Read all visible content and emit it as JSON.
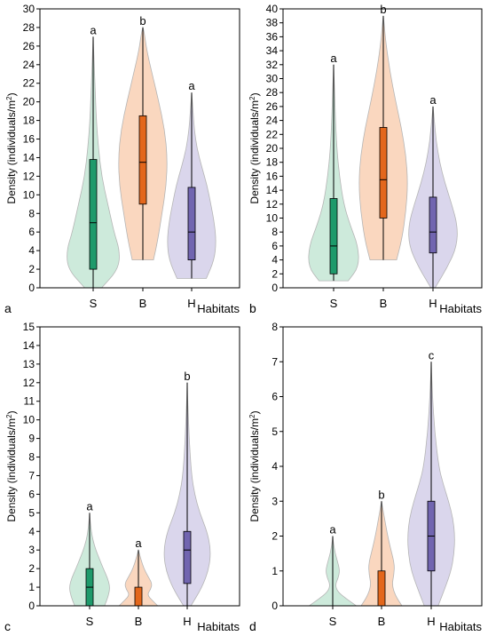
{
  "figure": {
    "x_axis_label": "Habitats",
    "y_axis_label_prefix": "Density (individuals/m",
    "y_axis_label_sup": "2",
    "y_axis_label_suffix": ")"
  },
  "colors": {
    "S": {
      "fill": "#cdeadb",
      "box": "#1e9a6b"
    },
    "B": {
      "fill": "#fad7bf",
      "box": "#e3671c"
    },
    "H": {
      "fill": "#dad6ec",
      "box": "#7165b0"
    },
    "outline": "#b5b5b5",
    "axis": "#000000"
  },
  "chart_data": [
    {
      "type": "violin",
      "panel_label": "a",
      "categories": [
        "S",
        "B",
        "H"
      ],
      "xlabel": "Habitats",
      "ylabel": "Density (individuals/m²)",
      "ylim": [
        0,
        30
      ],
      "yticks": [
        0,
        2,
        4,
        6,
        8,
        10,
        12,
        14,
        16,
        18,
        20,
        22,
        24,
        26,
        28,
        30
      ],
      "series": [
        {
          "category": "S",
          "min": 0,
          "q1": 2,
          "median": 7,
          "q3": 13.8,
          "max": 27,
          "letter": "a",
          "violin_min": 0,
          "violin_max": 27,
          "density": [
            [
              0,
              0.32
            ],
            [
              2,
              0.95
            ],
            [
              4,
              1.0
            ],
            [
              6,
              0.78
            ],
            [
              9,
              0.55
            ],
            [
              12,
              0.32
            ],
            [
              15,
              0.2
            ],
            [
              18,
              0.12
            ],
            [
              21,
              0.08
            ],
            [
              24,
              0.04
            ],
            [
              27,
              0.0
            ]
          ]
        },
        {
          "category": "B",
          "min": 3,
          "q1": 9,
          "median": 13.5,
          "q3": 18.5,
          "max": 28,
          "letter": "b",
          "violin_min": 3,
          "violin_max": 28,
          "density": [
            [
              3,
              0.4
            ],
            [
              5,
              0.55
            ],
            [
              8,
              0.72
            ],
            [
              11,
              0.88
            ],
            [
              14,
              0.92
            ],
            [
              17,
              0.82
            ],
            [
              20,
              0.6
            ],
            [
              23,
              0.35
            ],
            [
              25.5,
              0.15
            ],
            [
              27.5,
              0.05
            ],
            [
              28,
              0.0
            ]
          ]
        },
        {
          "category": "H",
          "min": 1,
          "q1": 3,
          "median": 6,
          "q3": 10.8,
          "max": 21,
          "letter": "a",
          "violin_min": 1,
          "violin_max": 21,
          "density": [
            [
              1,
              0.55
            ],
            [
              3,
              0.85
            ],
            [
              5,
              0.92
            ],
            [
              7,
              0.85
            ],
            [
              9,
              0.72
            ],
            [
              11,
              0.58
            ],
            [
              13,
              0.38
            ],
            [
              15,
              0.2
            ],
            [
              17,
              0.1
            ],
            [
              19,
              0.05
            ],
            [
              21,
              0.0
            ]
          ]
        }
      ]
    },
    {
      "type": "violin",
      "panel_label": "b",
      "categories": [
        "S",
        "B",
        "H"
      ],
      "xlabel": "Habitats",
      "ylabel": "Density (individuals/m²)",
      "ylim": [
        0,
        40
      ],
      "yticks": [
        0,
        2,
        4,
        6,
        8,
        10,
        12,
        14,
        16,
        18,
        20,
        22,
        24,
        26,
        28,
        30,
        32,
        34,
        36,
        38,
        40
      ],
      "series": [
        {
          "category": "S",
          "min": 1,
          "q1": 2,
          "median": 6,
          "q3": 12.8,
          "max": 32,
          "letter": "a",
          "violin_min": 1,
          "violin_max": 32,
          "density": [
            [
              1,
              0.55
            ],
            [
              3,
              0.95
            ],
            [
              6,
              0.92
            ],
            [
              9,
              0.62
            ],
            [
              12,
              0.38
            ],
            [
              16,
              0.22
            ],
            [
              20,
              0.12
            ],
            [
              25,
              0.06
            ],
            [
              29,
              0.03
            ],
            [
              32,
              0.0
            ]
          ]
        },
        {
          "category": "B",
          "min": 4,
          "q1": 10,
          "median": 15.5,
          "q3": 23,
          "max": 39,
          "letter": "b",
          "violin_min": 4,
          "violin_max": 39,
          "density": [
            [
              4,
              0.5
            ],
            [
              7,
              0.7
            ],
            [
              11,
              0.85
            ],
            [
              15,
              0.92
            ],
            [
              19,
              0.85
            ],
            [
              23,
              0.68
            ],
            [
              27,
              0.45
            ],
            [
              31,
              0.25
            ],
            [
              35,
              0.1
            ],
            [
              38,
              0.03
            ],
            [
              39,
              0.0
            ]
          ]
        },
        {
          "category": "H",
          "min": 0,
          "q1": 5,
          "median": 8,
          "q3": 13,
          "max": 26,
          "letter": "a",
          "violin_min": 0,
          "violin_max": 26,
          "density": [
            [
              0,
              0.08
            ],
            [
              3,
              0.55
            ],
            [
              6,
              0.9
            ],
            [
              9,
              0.92
            ],
            [
              12,
              0.7
            ],
            [
              15,
              0.45
            ],
            [
              18,
              0.25
            ],
            [
              21,
              0.12
            ],
            [
              24,
              0.05
            ],
            [
              26,
              0.0
            ]
          ]
        }
      ]
    },
    {
      "type": "violin",
      "panel_label": "c",
      "categories": [
        "S",
        "B",
        "H"
      ],
      "xlabel": "Habitats",
      "ylabel": "Density (individuals/m²)",
      "ylim": [
        0,
        15
      ],
      "yticks": [
        0,
        1,
        2,
        3,
        4,
        5,
        6,
        7,
        8,
        9,
        10,
        11,
        12,
        13,
        14,
        15
      ],
      "series": [
        {
          "category": "S",
          "min": 0,
          "q1": 0,
          "median": 1,
          "q3": 2,
          "max": 5,
          "letter": "a",
          "violin_min": 0,
          "violin_max": 5,
          "density": [
            [
              0,
              0.6
            ],
            [
              0.5,
              0.75
            ],
            [
              1,
              0.82
            ],
            [
              1.5,
              0.72
            ],
            [
              2,
              0.55
            ],
            [
              2.5,
              0.4
            ],
            [
              3,
              0.25
            ],
            [
              3.5,
              0.14
            ],
            [
              4,
              0.07
            ],
            [
              4.5,
              0.03
            ],
            [
              5,
              0.0
            ]
          ]
        },
        {
          "category": "B",
          "min": 0,
          "q1": 0,
          "median": 0,
          "q3": 1,
          "max": 3,
          "letter": "a",
          "violin_min": 0,
          "violin_max": 3,
          "density": [
            [
              0,
              0.78
            ],
            [
              0.3,
              0.55
            ],
            [
              0.6,
              0.35
            ],
            [
              0.9,
              0.5
            ],
            [
              1.2,
              0.55
            ],
            [
              1.6,
              0.38
            ],
            [
              2,
              0.22
            ],
            [
              2.5,
              0.1
            ],
            [
              3,
              0.0
            ]
          ]
        },
        {
          "category": "H",
          "min": 0,
          "q1": 1.2,
          "median": 3,
          "q3": 4,
          "max": 12,
          "letter": "b",
          "violin_min": 0,
          "violin_max": 12,
          "density": [
            [
              0,
              0.15
            ],
            [
              1,
              0.6
            ],
            [
              2,
              0.88
            ],
            [
              3,
              0.95
            ],
            [
              4,
              0.8
            ],
            [
              5,
              0.5
            ],
            [
              6,
              0.3
            ],
            [
              7,
              0.18
            ],
            [
              8.5,
              0.1
            ],
            [
              10,
              0.05
            ],
            [
              11,
              0.02
            ],
            [
              12,
              0.0
            ]
          ]
        }
      ]
    },
    {
      "type": "violin",
      "panel_label": "d",
      "categories": [
        "S",
        "B",
        "H"
      ],
      "xlabel": "Habitats",
      "ylabel": "Density (individuals/m²)",
      "ylim": [
        0,
        8
      ],
      "yticks": [
        0,
        1,
        2,
        3,
        4,
        5,
        6,
        7,
        8
      ],
      "series": [
        {
          "category": "S",
          "min": 0,
          "q1": 0,
          "median": 0,
          "q3": 0,
          "max": 2,
          "letter": "a",
          "violin_min": 0,
          "violin_max": 2,
          "density": [
            [
              0,
              0.95
            ],
            [
              0.2,
              0.55
            ],
            [
              0.4,
              0.2
            ],
            [
              0.6,
              0.1
            ],
            [
              0.8,
              0.22
            ],
            [
              1.0,
              0.28
            ],
            [
              1.2,
              0.22
            ],
            [
              1.5,
              0.1
            ],
            [
              1.8,
              0.03
            ],
            [
              2,
              0.0
            ]
          ]
        },
        {
          "category": "B",
          "min": 0,
          "q1": 0,
          "median": 0,
          "q3": 1,
          "max": 3,
          "letter": "b",
          "violin_min": 0,
          "violin_max": 3,
          "density": [
            [
              0,
              0.82
            ],
            [
              0.3,
              0.55
            ],
            [
              0.6,
              0.42
            ],
            [
              0.9,
              0.5
            ],
            [
              1.2,
              0.52
            ],
            [
              1.6,
              0.38
            ],
            [
              2,
              0.25
            ],
            [
              2.5,
              0.12
            ],
            [
              3,
              0.0
            ]
          ]
        },
        {
          "category": "H",
          "min": 0,
          "q1": 1,
          "median": 2,
          "q3": 3,
          "max": 7,
          "letter": "c",
          "violin_min": 0,
          "violin_max": 7,
          "density": [
            [
              0,
              0.28
            ],
            [
              0.5,
              0.55
            ],
            [
              1,
              0.8
            ],
            [
              1.5,
              0.92
            ],
            [
              2,
              0.95
            ],
            [
              2.5,
              0.88
            ],
            [
              3,
              0.7
            ],
            [
              3.5,
              0.48
            ],
            [
              4,
              0.3
            ],
            [
              5,
              0.14
            ],
            [
              6,
              0.05
            ],
            [
              7,
              0.0
            ]
          ]
        }
      ]
    }
  ]
}
